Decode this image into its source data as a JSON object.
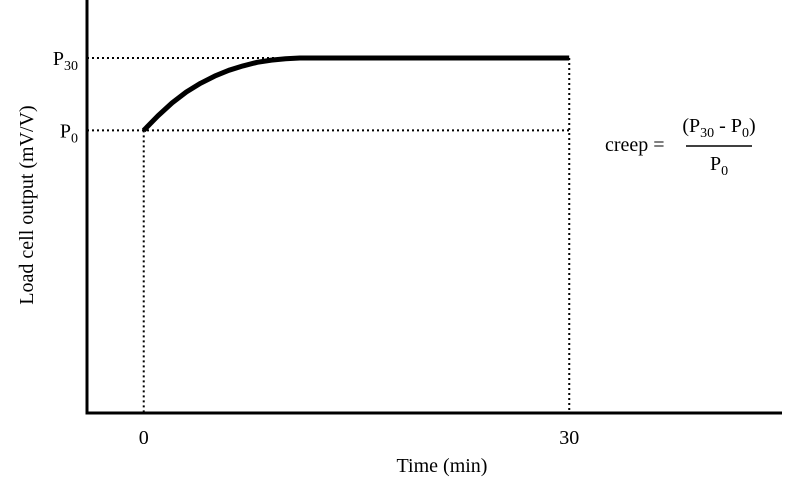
{
  "chart_data": {
    "type": "line",
    "title": "",
    "xlabel": "Time (min)",
    "ylabel": "Load cell output (mV/V)",
    "x_ticks": [
      {
        "value": 0,
        "label": "0"
      },
      {
        "value": 30,
        "label": "30"
      }
    ],
    "y_ticks": [
      {
        "value": 0,
        "label": "P",
        "sub": "0"
      },
      {
        "value": 1,
        "label": "P",
        "sub": "30"
      }
    ],
    "xlim": [
      -4,
      45
    ],
    "ylim": [
      -3.9,
      1.8
    ],
    "grid": false,
    "series": [
      {
        "x": [
          0,
          1,
          2,
          3,
          4,
          5,
          6,
          7,
          8,
          9,
          10,
          11,
          12,
          30
        ],
        "y": [
          0,
          0.2,
          0.38,
          0.53,
          0.65,
          0.75,
          0.83,
          0.89,
          0.94,
          0.97,
          0.99,
          1,
          1,
          1
        ]
      }
    ],
    "annotation": {
      "lhs": "creep =",
      "numerator": {
        "open": "(P",
        "sub1": "30",
        "mid": " - P",
        "sub2": "0",
        "close": ")"
      },
      "denominator": {
        "text": "P",
        "sub": "0"
      }
    }
  }
}
